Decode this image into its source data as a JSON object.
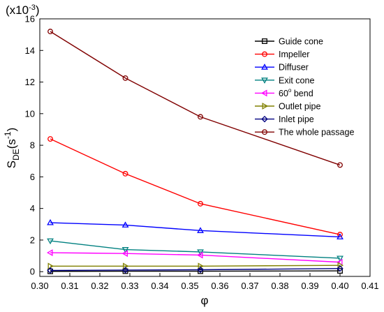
{
  "chart_data": {
    "type": "line",
    "title": "",
    "xlabel": "φ",
    "ylabel": "S_DE(s^-1)",
    "ylabel_parts": {
      "main": "S",
      "sub": "DE",
      "open": "(s",
      "sup": "-1",
      "close": ")"
    },
    "multiplier": {
      "open": "(x10",
      "sup": "-3",
      "close": ")"
    },
    "xlim": [
      0.3,
      0.41
    ],
    "ylim": [
      -0.3,
      16
    ],
    "xticks": [
      0.3,
      0.31,
      0.32,
      0.33,
      0.34,
      0.35,
      0.36,
      0.37,
      0.38,
      0.39,
      0.4,
      0.41
    ],
    "xtick_labels": [
      "0.30",
      "0.31",
      "0.32",
      "0.33",
      "0.34",
      "0.35",
      "0.36",
      "0.37",
      "0.38",
      "0.39",
      "0.40",
      "0.41"
    ],
    "yticks": [
      0,
      2,
      4,
      6,
      8,
      10,
      12,
      14,
      16
    ],
    "ytick_labels": [
      "0",
      "2",
      "4",
      "6",
      "8",
      "10",
      "12",
      "14",
      "16"
    ],
    "grid": false,
    "legend_position": "top-right",
    "x": [
      0.3035,
      0.3285,
      0.3535,
      0.4
    ],
    "series": [
      {
        "name": "Guide cone",
        "marker": "square",
        "color": "#000000",
        "values": [
          0.02,
          0.03,
          0.03,
          0.05
        ]
      },
      {
        "name": "Impeller",
        "marker": "circle",
        "color": "#ff0000",
        "values": [
          8.4,
          6.2,
          4.3,
          2.35
        ]
      },
      {
        "name": "Diffuser",
        "marker": "triangle-up",
        "color": "#0000ff",
        "values": [
          3.1,
          2.95,
          2.6,
          2.2
        ]
      },
      {
        "name": "Exit cone",
        "marker": "triangle-down",
        "color": "#008080",
        "values": [
          1.95,
          1.4,
          1.25,
          0.85
        ]
      },
      {
        "name": "60° bend",
        "marker": "triangle-left",
        "color": "#ff00ff",
        "values": [
          1.2,
          1.15,
          1.05,
          0.6
        ]
      },
      {
        "name": "Outlet pipe",
        "marker": "triangle-right",
        "color": "#808000",
        "values": [
          0.35,
          0.35,
          0.35,
          0.4
        ]
      },
      {
        "name": "Inlet pipe",
        "marker": "diamond",
        "color": "#000080",
        "values": [
          0.08,
          0.1,
          0.12,
          0.2
        ]
      },
      {
        "name": "The whole passage",
        "marker": "circle",
        "color": "#800000",
        "values": [
          15.2,
          12.25,
          9.8,
          6.75
        ]
      }
    ]
  }
}
